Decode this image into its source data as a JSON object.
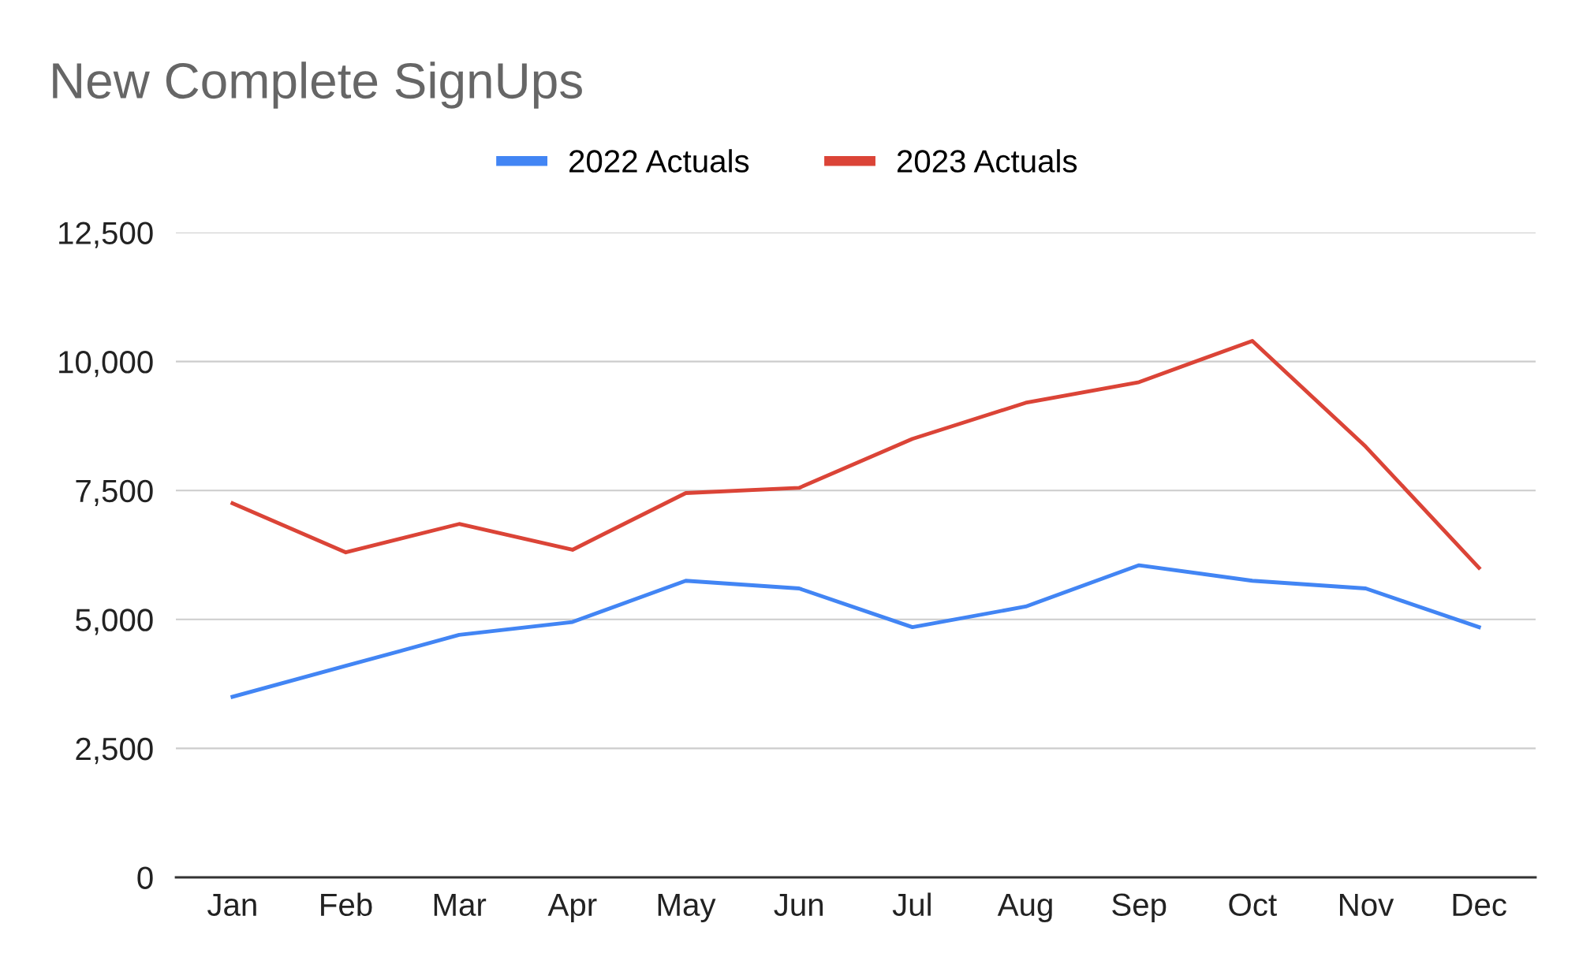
{
  "chart_data": {
    "type": "line",
    "title": "New Complete SignUps",
    "categories": [
      "Jan",
      "Feb",
      "Mar",
      "Apr",
      "May",
      "Jun",
      "Jul",
      "Aug",
      "Sep",
      "Oct",
      "Nov",
      "Dec"
    ],
    "series": [
      {
        "name": "2022 Actuals",
        "color": "#4285f4",
        "values": [
          3500,
          4100,
          4700,
          4950,
          5750,
          5600,
          4850,
          5250,
          6050,
          5750,
          5600,
          4850
        ]
      },
      {
        "name": "2023 Actuals",
        "color": "#db4437",
        "values": [
          7250,
          6300,
          6850,
          6350,
          7450,
          7550,
          8500,
          9200,
          9600,
          10400,
          8350,
          6000
        ]
      }
    ],
    "ylim": [
      0,
      12500
    ],
    "yticks": [
      0,
      {
        "value": 2500,
        "label": "2,500"
      },
      {
        "value": 5000,
        "label": "5,000"
      },
      {
        "value": 7500,
        "label": "7,500"
      },
      {
        "value": 10000,
        "label": "10,000"
      },
      {
        "value": 12500,
        "label": "12,500"
      }
    ],
    "grid": "y",
    "legend": "top",
    "marker": "none",
    "line_style": "solid"
  }
}
